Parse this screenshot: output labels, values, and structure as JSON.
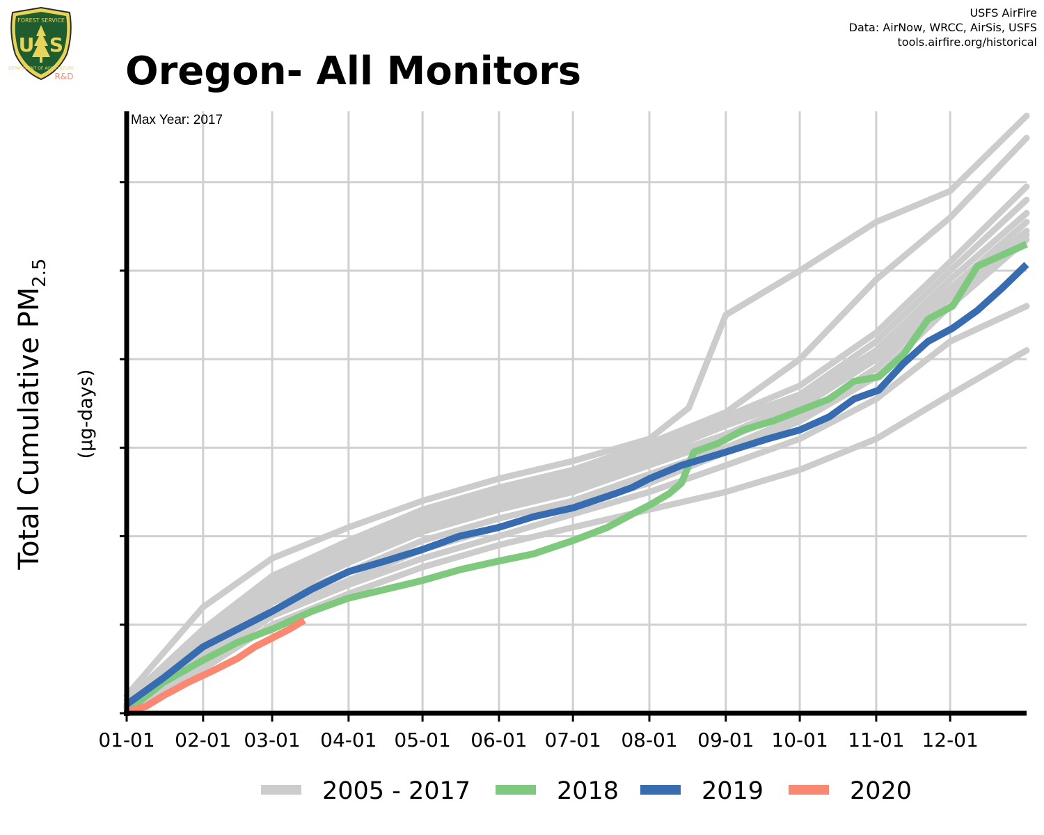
{
  "header": {
    "title": "Oregon- All Monitors",
    "credits": [
      "USFS AirFire",
      "Data: AirNow, WRCC, AirSis, USFS",
      "tools.airfire.org/historical"
    ],
    "logo": {
      "top_text": "FOREST SERVICE",
      "letters": "U S",
      "bottom_text": "DEPARTMENT OF AGRICULTURE",
      "tag": "R&D"
    }
  },
  "chart_data": {
    "type": "line",
    "title": "Oregon- All Monitors",
    "annotation": "Max Year: 2017",
    "xlabel": "",
    "ylabel": "Total Cumulative PM",
    "ylabel_sub": "2.5",
    "ylabel_units": "(µg-days)",
    "x_ticks": [
      "01-01",
      "02-01",
      "03-01",
      "04-01",
      "05-01",
      "06-01",
      "07-01",
      "08-01",
      "09-01",
      "10-01",
      "11-01",
      "12-01"
    ],
    "x_tick_days": [
      0,
      31,
      59,
      90,
      120,
      151,
      181,
      212,
      243,
      273,
      304,
      334
    ],
    "xlim": [
      0,
      365
    ],
    "ylim": [
      0,
      6.8
    ],
    "y_ticks": [
      0,
      1,
      2,
      3,
      4,
      5,
      6
    ],
    "y_tick_labels_shown": false,
    "grid": true,
    "legend_position": "bottom",
    "colors": {
      "historical": "#cccccc",
      "2018": "#7fc97f",
      "2019": "#386cb0",
      "2020": "#f98772"
    },
    "legend": [
      {
        "label": "2005 - 2017",
        "color": "#cccccc"
      },
      {
        "label": "2018",
        "color": "#7fc97f"
      },
      {
        "label": "2019",
        "color": "#386cb0"
      },
      {
        "label": "2020",
        "color": "#f98772"
      }
    ],
    "historical_series": [
      {
        "x": [
          0,
          31,
          59,
          90,
          120,
          151,
          181,
          212,
          228,
          243,
          273,
          304,
          334,
          365
        ],
        "y": [
          0.2,
          1.2,
          1.75,
          2.1,
          2.4,
          2.65,
          2.85,
          3.1,
          3.45,
          4.5,
          5.0,
          5.55,
          5.9,
          6.75
        ]
      },
      {
        "x": [
          0,
          31,
          59,
          90,
          120,
          151,
          181,
          212,
          243,
          273,
          304,
          334,
          365
        ],
        "y": [
          0.15,
          0.95,
          1.55,
          1.95,
          2.3,
          2.55,
          2.75,
          3.05,
          3.4,
          4.0,
          4.9,
          5.6,
          6.5
        ]
      },
      {
        "x": [
          0,
          31,
          59,
          90,
          120,
          151,
          181,
          212,
          243,
          273,
          304,
          334,
          365
        ],
        "y": [
          0.1,
          0.9,
          1.5,
          1.9,
          2.25,
          2.5,
          2.7,
          3.0,
          3.35,
          3.7,
          4.3,
          5.1,
          5.95
        ]
      },
      {
        "x": [
          0,
          31,
          59,
          90,
          120,
          151,
          181,
          212,
          243,
          273,
          304,
          334,
          365
        ],
        "y": [
          0.1,
          0.85,
          1.45,
          1.85,
          2.2,
          2.45,
          2.65,
          2.95,
          3.3,
          3.6,
          4.2,
          5.0,
          5.8
        ]
      },
      {
        "x": [
          0,
          31,
          59,
          90,
          120,
          151,
          181,
          212,
          243,
          273,
          304,
          334,
          365
        ],
        "y": [
          0.1,
          0.8,
          1.4,
          1.8,
          2.15,
          2.4,
          2.6,
          2.9,
          3.25,
          3.55,
          4.1,
          4.9,
          5.65
        ]
      },
      {
        "x": [
          0,
          31,
          59,
          90,
          120,
          151,
          181,
          212,
          243,
          273,
          304,
          334,
          365
        ],
        "y": [
          0.08,
          0.75,
          1.35,
          1.75,
          2.1,
          2.35,
          2.55,
          2.85,
          3.15,
          3.5,
          4.05,
          4.8,
          5.55
        ]
      },
      {
        "x": [
          0,
          31,
          59,
          90,
          120,
          151,
          181,
          212,
          243,
          273,
          304,
          334,
          365
        ],
        "y": [
          0.08,
          0.7,
          1.3,
          1.7,
          2.05,
          2.3,
          2.5,
          2.8,
          3.1,
          3.45,
          4.0,
          4.75,
          5.45
        ]
      },
      {
        "x": [
          0,
          31,
          59,
          90,
          120,
          151,
          181,
          212,
          243,
          273,
          304,
          334,
          365
        ],
        "y": [
          0.07,
          0.65,
          1.25,
          1.6,
          1.95,
          2.2,
          2.4,
          2.7,
          3.0,
          3.35,
          3.9,
          4.7,
          5.4
        ]
      },
      {
        "x": [
          0,
          31,
          59,
          90,
          120,
          151,
          181,
          212,
          243,
          273,
          304,
          334,
          365
        ],
        "y": [
          0.06,
          0.6,
          1.15,
          1.5,
          1.85,
          2.1,
          2.35,
          2.6,
          2.95,
          3.3,
          3.8,
          4.6,
          5.35
        ]
      },
      {
        "x": [
          0,
          31,
          59,
          90,
          120,
          151,
          181,
          212,
          243,
          273,
          304,
          334,
          365
        ],
        "y": [
          0.05,
          0.55,
          1.1,
          1.45,
          1.75,
          2.0,
          2.25,
          2.5,
          2.8,
          3.1,
          3.55,
          4.2,
          4.6
        ]
      },
      {
        "x": [
          0,
          31,
          59,
          90,
          120,
          151,
          181,
          212,
          243,
          273,
          304,
          334,
          365
        ],
        "y": [
          0.05,
          0.5,
          1.0,
          1.35,
          1.65,
          1.9,
          2.1,
          2.3,
          2.5,
          2.75,
          3.1,
          3.6,
          4.1
        ]
      }
    ],
    "series": [
      {
        "name": "2018",
        "x": [
          0,
          15,
          31,
          45,
          59,
          75,
          90,
          105,
          120,
          135,
          151,
          165,
          181,
          195,
          205,
          212,
          220,
          225,
          230,
          240,
          250,
          262,
          273,
          285,
          295,
          305,
          315,
          325,
          335,
          345,
          365
        ],
        "y": [
          0.02,
          0.35,
          0.6,
          0.8,
          0.95,
          1.15,
          1.3,
          1.4,
          1.5,
          1.62,
          1.72,
          1.8,
          1.95,
          2.1,
          2.25,
          2.35,
          2.48,
          2.6,
          2.95,
          3.05,
          3.2,
          3.3,
          3.42,
          3.55,
          3.75,
          3.8,
          4.05,
          4.45,
          4.6,
          5.05,
          5.3
        ]
      },
      {
        "name": "2019",
        "x": [
          0,
          15,
          31,
          45,
          59,
          75,
          90,
          105,
          120,
          135,
          151,
          165,
          181,
          195,
          205,
          212,
          225,
          243,
          260,
          273,
          285,
          295,
          305,
          315,
          325,
          335,
          345,
          355,
          365
        ],
        "y": [
          0.1,
          0.4,
          0.75,
          0.95,
          1.15,
          1.4,
          1.6,
          1.72,
          1.85,
          2.0,
          2.1,
          2.22,
          2.32,
          2.45,
          2.55,
          2.65,
          2.8,
          2.95,
          3.1,
          3.2,
          3.35,
          3.55,
          3.65,
          3.95,
          4.2,
          4.35,
          4.55,
          4.8,
          5.07
        ]
      },
      {
        "name": "2020",
        "x": [
          0,
          8,
          15,
          25,
          35,
          45,
          52,
          59,
          66,
          72
        ],
        "y": [
          0.02,
          0.08,
          0.2,
          0.35,
          0.48,
          0.62,
          0.75,
          0.85,
          0.95,
          1.05
        ]
      }
    ]
  }
}
